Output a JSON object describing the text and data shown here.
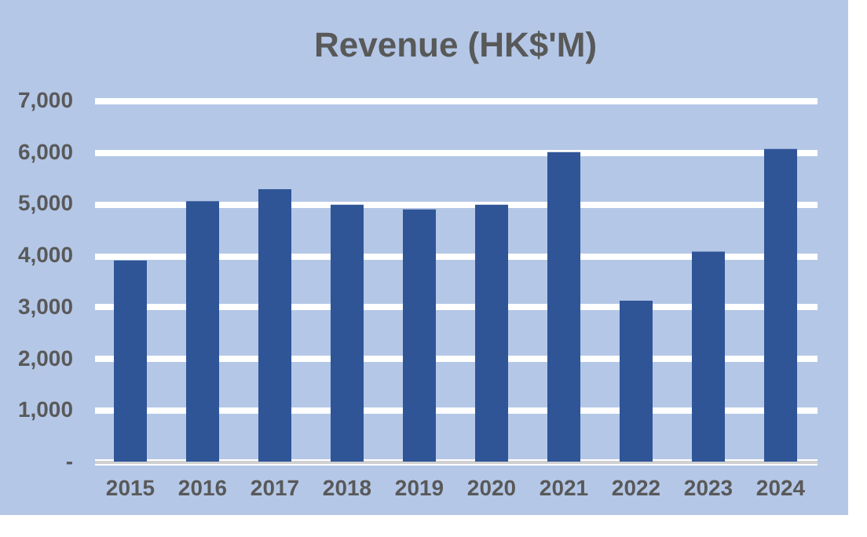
{
  "chart_data": {
    "type": "bar",
    "title": "Revenue (HK$'M)",
    "categories": [
      "2015",
      "2016",
      "2017",
      "2018",
      "2019",
      "2020",
      "2021",
      "2022",
      "2023",
      "2024"
    ],
    "values": [
      3900,
      5050,
      5280,
      4980,
      4890,
      4980,
      6000,
      3120,
      4070,
      6060
    ],
    "color": "#2f5597",
    "ylim": [
      0,
      7000
    ],
    "yticks": [
      {
        "value": 0,
        "label": "-"
      },
      {
        "value": 1000,
        "label": "1,000"
      },
      {
        "value": 2000,
        "label": "2,000"
      },
      {
        "value": 3000,
        "label": "3,000"
      },
      {
        "value": 4000,
        "label": "4,000"
      },
      {
        "value": 5000,
        "label": "5,000"
      },
      {
        "value": 6000,
        "label": "6,000"
      },
      {
        "value": 7000,
        "label": "7,000"
      }
    ],
    "grid": "y"
  }
}
